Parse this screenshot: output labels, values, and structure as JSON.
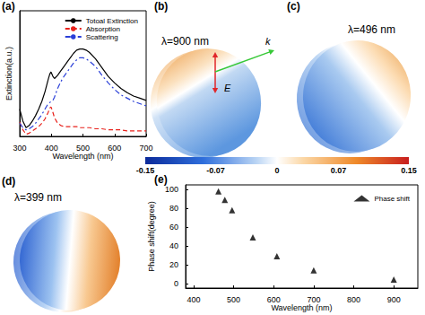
{
  "chart_data": [
    {
      "title": "(a)",
      "type": "line",
      "xlabel": "Wavelength (nm)",
      "ylabel": "Extinction(a.u.)",
      "x": [
        300,
        310,
        320,
        330,
        340,
        350,
        360,
        370,
        380,
        390,
        395,
        399,
        405,
        410,
        420,
        430,
        440,
        450,
        460,
        470,
        480,
        490,
        500,
        510,
        520,
        540,
        560,
        580,
        600,
        620,
        640,
        660,
        680,
        700
      ],
      "series": [
        {
          "name": "Totoal Extinction",
          "color": "#000000",
          "line_style": "solid",
          "values": [
            0.25,
            0.14,
            0.08,
            0.1,
            0.14,
            0.19,
            0.25,
            0.32,
            0.41,
            0.52,
            0.57,
            0.59,
            0.55,
            0.53,
            0.56,
            0.6,
            0.64,
            0.68,
            0.72,
            0.76,
            0.79,
            0.8,
            0.8,
            0.79,
            0.77,
            0.71,
            0.63,
            0.55,
            0.49,
            0.44,
            0.4,
            0.37,
            0.35,
            0.33
          ]
        },
        {
          "name": "Absorption",
          "color": "#e8211b",
          "line_style": "dashed",
          "values": [
            0.13,
            0.06,
            0.02,
            0.03,
            0.05,
            0.07,
            0.09,
            0.12,
            0.16,
            0.22,
            0.26,
            0.27,
            0.22,
            0.17,
            0.12,
            0.1,
            0.09,
            0.09,
            0.09,
            0.09,
            0.09,
            0.08,
            0.08,
            0.08,
            0.08,
            0.07,
            0.07,
            0.06,
            0.06,
            0.06,
            0.05,
            0.05,
            0.05,
            0.05
          ]
        },
        {
          "name": "Scattering",
          "color": "#2a3fd8",
          "line_style": "dashdot",
          "values": [
            0.12,
            0.08,
            0.06,
            0.07,
            0.09,
            0.12,
            0.16,
            0.2,
            0.25,
            0.3,
            0.31,
            0.32,
            0.33,
            0.36,
            0.44,
            0.5,
            0.55,
            0.59,
            0.63,
            0.67,
            0.7,
            0.72,
            0.72,
            0.71,
            0.69,
            0.64,
            0.56,
            0.49,
            0.43,
            0.38,
            0.35,
            0.32,
            0.3,
            0.28
          ]
        }
      ],
      "xlim": [
        300,
        700
      ],
      "xticks": [
        300,
        400,
        500,
        600,
        700
      ],
      "ylim": [
        0,
        1.15
      ],
      "tick_labels": "x",
      "legend": "upper right",
      "grid": false
    },
    {
      "title": "(b)",
      "type": "field_map",
      "subtitle": "λ=900 nm",
      "annotations": [
        "E",
        "k"
      ]
    },
    {
      "title": "(c)",
      "type": "field_map",
      "subtitle": "λ=496 nm"
    },
    {
      "type": "colorbar",
      "xlim": [
        -0.15,
        0.15
      ],
      "xticks": [
        -0.15,
        -0.07,
        0,
        0.07,
        0.15
      ]
    },
    {
      "title": "(d)",
      "type": "field_map",
      "subtitle": "λ=399 nm"
    },
    {
      "title": "(e)",
      "type": "scatter",
      "xlabel": "Wavelength (nm)",
      "ylabel": "Phase shift(degree)",
      "x": [
        462,
        478,
        496,
        548,
        608,
        700,
        900
      ],
      "series": [
        {
          "name": "Phase shift",
          "color": "#000000",
          "marker": "triangle",
          "values": [
            98,
            89,
            78,
            49,
            29,
            14,
            4
          ]
        }
      ],
      "xlim": [
        380,
        960
      ],
      "xticks": [
        400,
        500,
        600,
        700,
        800,
        900
      ],
      "ylim": [
        -5,
        105
      ],
      "yticks": [
        0,
        20,
        40,
        60,
        80,
        100
      ],
      "legend": "upper right",
      "grid": false
    }
  ]
}
